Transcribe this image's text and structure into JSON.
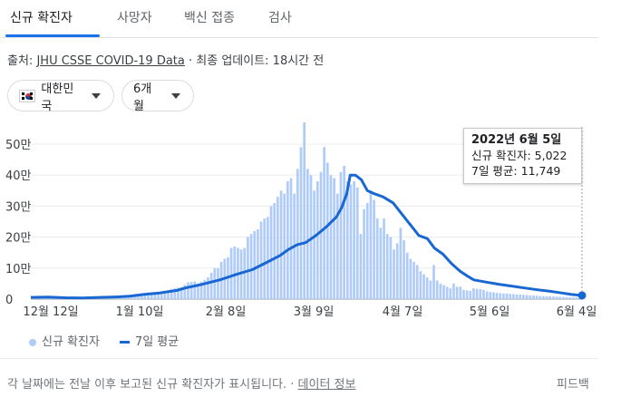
{
  "tabs": [
    {
      "label": "신규 확진자",
      "active": true
    },
    {
      "label": "사망자"
    },
    {
      "label": "백신 접종"
    },
    {
      "label": "검사"
    }
  ],
  "source": {
    "prefix": "출처:",
    "link": "JHU CSSE COVID-19 Data",
    "suffix": "· 최종 업데이트: 18시간 전"
  },
  "filters": {
    "country": "대한민국",
    "period": "6개월"
  },
  "tooltip": {
    "date": "2022년 6월 5일",
    "new_cases": "신규 확진자: 5,022",
    "avg7": "7일 평균: 11,749"
  },
  "legend": {
    "bars": "신규 확진자",
    "line": "7일 평균"
  },
  "footer": {
    "text": "각 날짜에는 전날 이후 보고된 신규 확진자가 표시됩니다. ·",
    "link": "데이터 정보",
    "feedback": "피드백"
  },
  "colors": {
    "bar": "#aecbfa",
    "line": "#1967d2",
    "active_tab": "#1a73e8"
  },
  "chart_data": {
    "type": "bar",
    "title": "",
    "xlabel": "",
    "ylabel": "",
    "ylim": [
      0,
      570000
    ],
    "yticks": [
      "0",
      "10만",
      "20만",
      "30만",
      "40만",
      "50만"
    ],
    "ytick_values": [
      0,
      100000,
      200000,
      300000,
      400000,
      500000
    ],
    "xticks": [
      "12월 12일",
      "1월 10일",
      "2월 8일",
      "3월 9일",
      "4월 7일",
      "5월 6일",
      "6월 4일"
    ],
    "series": [
      {
        "name": "신규 확진자",
        "kind": "bar",
        "values": [
          5800,
          5600,
          6400,
          7000,
          7600,
          6900,
          7100,
          7200,
          7300,
          6700,
          6600,
          7300,
          6000,
          5800,
          5400,
          5100,
          5100,
          5600,
          5400,
          4800,
          4300,
          3600,
          3300,
          3200,
          3500,
          3800,
          4500,
          4900,
          5500,
          5900,
          7600,
          8100,
          8500,
          9300,
          11000,
          12000,
          13000,
          17000,
          18000,
          20000,
          22000,
          28000,
          32000,
          35000,
          37000,
          38000,
          46000,
          54000,
          55000,
          57000,
          50000,
          56000,
          62000,
          70000,
          85000,
          100000,
          100000,
          120000,
          130000,
          135000,
          165000,
          170000,
          165000,
          160000,
          165000,
          200000,
          210000,
          220000,
          225000,
          250000,
          260000,
          265000,
          300000,
          310000,
          330000,
          350000,
          340000,
          380000,
          390000,
          340000,
          420000,
          490000,
          570000,
          420000,
          400000,
          350000,
          380000,
          410000,
          490000,
          440000,
          400000,
          390000,
          340000,
          410000,
          430000,
          380000,
          370000,
          380000,
          360000,
          210000,
          290000,
          310000,
          350000,
          320000,
          260000,
          230000,
          260000,
          210000,
          200000,
          160000,
          180000,
          230000,
          190000,
          150000,
          130000,
          120000,
          110000,
          90000,
          80000,
          70000,
          60000,
          110000,
          60000,
          50000,
          45000,
          40000,
          35000,
          50000,
          40000,
          40000,
          30000,
          28000,
          26000,
          35000,
          33000,
          32000,
          30000,
          25000,
          23000,
          22000,
          20000,
          19000,
          18000,
          18000,
          17000,
          16000,
          15000,
          15000,
          14000,
          13000,
          12000,
          12000,
          11000,
          10000,
          9500,
          9000,
          9000,
          8500,
          8000,
          7500,
          7000,
          6500,
          6000,
          5500,
          5000,
          5000
        ]
      },
      {
        "name": "7일 평균",
        "kind": "line",
        "points": [
          [
            0,
            5500
          ],
          [
            20,
            6800
          ],
          [
            40,
            4500
          ],
          [
            60,
            3500
          ],
          [
            80,
            5500
          ],
          [
            100,
            7000
          ],
          [
            115,
            9500
          ],
          [
            135,
            16000
          ],
          [
            150,
            20000
          ],
          [
            170,
            28000
          ],
          [
            180,
            36000
          ],
          [
            200,
            48000
          ],
          [
            220,
            62000
          ],
          [
            240,
            80000
          ],
          [
            258,
            95000
          ],
          [
            276,
            120000
          ],
          [
            290,
            140000
          ],
          [
            300,
            160000
          ],
          [
            310,
            175000
          ],
          [
            320,
            182000
          ],
          [
            332,
            205000
          ],
          [
            345,
            235000
          ],
          [
            356,
            265000
          ],
          [
            362,
            295000
          ],
          [
            368,
            340000
          ],
          [
            372,
            400000
          ],
          [
            378,
            400000
          ],
          [
            385,
            385000
          ],
          [
            392,
            350000
          ],
          [
            400,
            340000
          ],
          [
            410,
            330000
          ],
          [
            422,
            310000
          ],
          [
            432,
            275000
          ],
          [
            442,
            240000
          ],
          [
            452,
            205000
          ],
          [
            462,
            195000
          ],
          [
            470,
            165000
          ],
          [
            480,
            145000
          ],
          [
            490,
            115000
          ],
          [
            500,
            90000
          ],
          [
            508,
            75000
          ],
          [
            516,
            62000
          ],
          [
            530,
            55000
          ],
          [
            545,
            48000
          ],
          [
            560,
            42000
          ],
          [
            575,
            36000
          ],
          [
            590,
            30000
          ],
          [
            605,
            25000
          ],
          [
            618,
            20000
          ],
          [
            630,
            15000
          ],
          [
            642,
            11749
          ]
        ]
      }
    ]
  }
}
